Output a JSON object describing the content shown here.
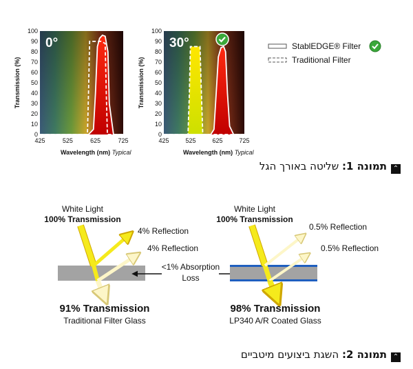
{
  "figure1": {
    "charts": [
      {
        "angle_label": "0°",
        "ylabel": "Transmission (%)",
        "xlabel": "Wavelength (nm)",
        "xlabel_suffix": "Typical",
        "x_ticks": [
          "425",
          "525",
          "625",
          "725"
        ],
        "y_ticks": [
          "0",
          "10",
          "20",
          "30",
          "40",
          "50",
          "60",
          "70",
          "80",
          "90",
          "100"
        ],
        "has_badge": false
      },
      {
        "angle_label": "30°",
        "ylabel": "Transmission (%)",
        "xlabel": "Wavelength (nm)",
        "xlabel_suffix": "Typical",
        "x_ticks": [
          "425",
          "525",
          "625",
          "725"
        ],
        "y_ticks": [
          "0",
          "10",
          "20",
          "30",
          "40",
          "50",
          "60",
          "70",
          "80",
          "90",
          "100"
        ],
        "has_badge": true
      }
    ],
    "legend": [
      {
        "label": "StablEDGE® Filter",
        "style": "solid",
        "icon": "stabledge-check-badge"
      },
      {
        "label": "Traditional Filter",
        "style": "dashed"
      }
    ],
    "caption_bold": "תמונה 1:",
    "caption_text": " שליטה באורך הגל"
  },
  "chart_data": [
    {
      "type": "line",
      "xlim": [
        425,
        725
      ],
      "ylim": [
        0,
        100
      ],
      "grid": false,
      "series": [
        {
          "name": "StablEDGE® Filter",
          "style": "solid",
          "x": [
            425,
            600,
            618,
            625,
            632,
            640,
            650,
            660,
            670,
            675,
            690,
            725
          ],
          "y": [
            0,
            0,
            5,
            40,
            85,
            93,
            96,
            95,
            80,
            30,
            0,
            0
          ]
        },
        {
          "name": "Traditional Filter",
          "style": "dashed",
          "x": [
            425,
            596,
            600,
            604,
            645,
            660,
            664,
            668,
            725
          ],
          "y": [
            0,
            0,
            40,
            90,
            90,
            88,
            40,
            0,
            0
          ]
        }
      ]
    },
    {
      "type": "line",
      "xlim": [
        425,
        725
      ],
      "ylim": [
        0,
        100
      ],
      "grid": false,
      "series": [
        {
          "name": "StablEDGE® Filter",
          "style": "solid",
          "x": [
            425,
            600,
            612,
            620,
            628,
            638,
            648,
            655,
            662,
            670,
            685,
            725
          ],
          "y": [
            0,
            0,
            5,
            40,
            75,
            84,
            85,
            80,
            40,
            8,
            0,
            0
          ]
        },
        {
          "name": "Traditional Filter",
          "style": "dashed",
          "x": [
            425,
            515,
            520,
            524,
            560,
            565,
            570,
            725
          ],
          "y": [
            0,
            0,
            40,
            85,
            85,
            40,
            0,
            0
          ]
        }
      ]
    }
  ],
  "figure2": {
    "left": {
      "incoming": "White Light",
      "incoming_bold": "100% Transmission",
      "reflection1": "4% Reflection",
      "reflection2": "4% Reflection",
      "transmission": "91% Transmission",
      "glass": "Traditional Filter Glass"
    },
    "center": {
      "absorption_line1": "<1% Absorption",
      "absorption_line2": "Loss"
    },
    "right": {
      "incoming": "White Light",
      "incoming_bold": "100% Transmission",
      "reflection1": "0.5% Reflection",
      "reflection2": "0.5% Reflection",
      "transmission": "98% Transmission",
      "glass": "LP340 A/R Coated Glass"
    },
    "caption_bold": "תמונה 2:",
    "caption_text": " השגת ביצועים מיטביים"
  },
  "colors": {
    "beam": "#f5ea1c",
    "beam_stroke": "#cfa700",
    "glass": "#a3a3a3",
    "coating": "#1f5fbf",
    "peak_red": "#d40000"
  }
}
